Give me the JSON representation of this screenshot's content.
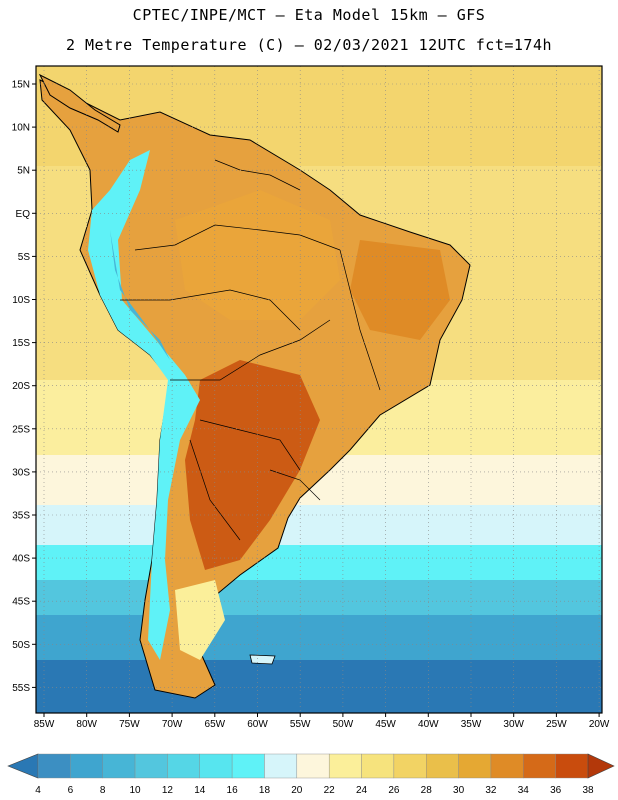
{
  "header": {
    "line1": "CPTEC/INPE/MCT –  Eta Model 15km – GFS",
    "line2": "2 Metre Temperature (C) – 02/03/2021 12UTC fct=174h"
  },
  "map": {
    "lat_labels": [
      "15N",
      "10N",
      "5N",
      "EQ",
      "5S",
      "10S",
      "15S",
      "20S",
      "25S",
      "30S",
      "35S",
      "40S",
      "45S",
      "50S",
      "55S"
    ],
    "lon_labels": [
      "85W",
      "80W",
      "75W",
      "70W",
      "65W",
      "60W",
      "55W",
      "50W",
      "45W",
      "40W",
      "35W",
      "30W",
      "25W",
      "20W"
    ],
    "ocean_color": "#f7d97a",
    "land_color": "#e6a13e",
    "grid_color": "#888888"
  },
  "colorbar": {
    "labels": [
      "4",
      "6",
      "8",
      "10",
      "12",
      "14",
      "16",
      "18",
      "20",
      "22",
      "24",
      "26",
      "28",
      "30",
      "32",
      "34",
      "36",
      "38"
    ],
    "colors": [
      "#2a78b4",
      "#3c8fc2",
      "#3fa5cf",
      "#47b5d6",
      "#53c6de",
      "#55d6e6",
      "#57e5ef",
      "#5ff2f7",
      "#d6f5fa",
      "#fdf6dc",
      "#fbef9a",
      "#f6e37d",
      "#f2d364",
      "#eabf4a",
      "#e5a833",
      "#df8b26",
      "#d56a18",
      "#c94c0d",
      "#b3380a"
    ]
  }
}
